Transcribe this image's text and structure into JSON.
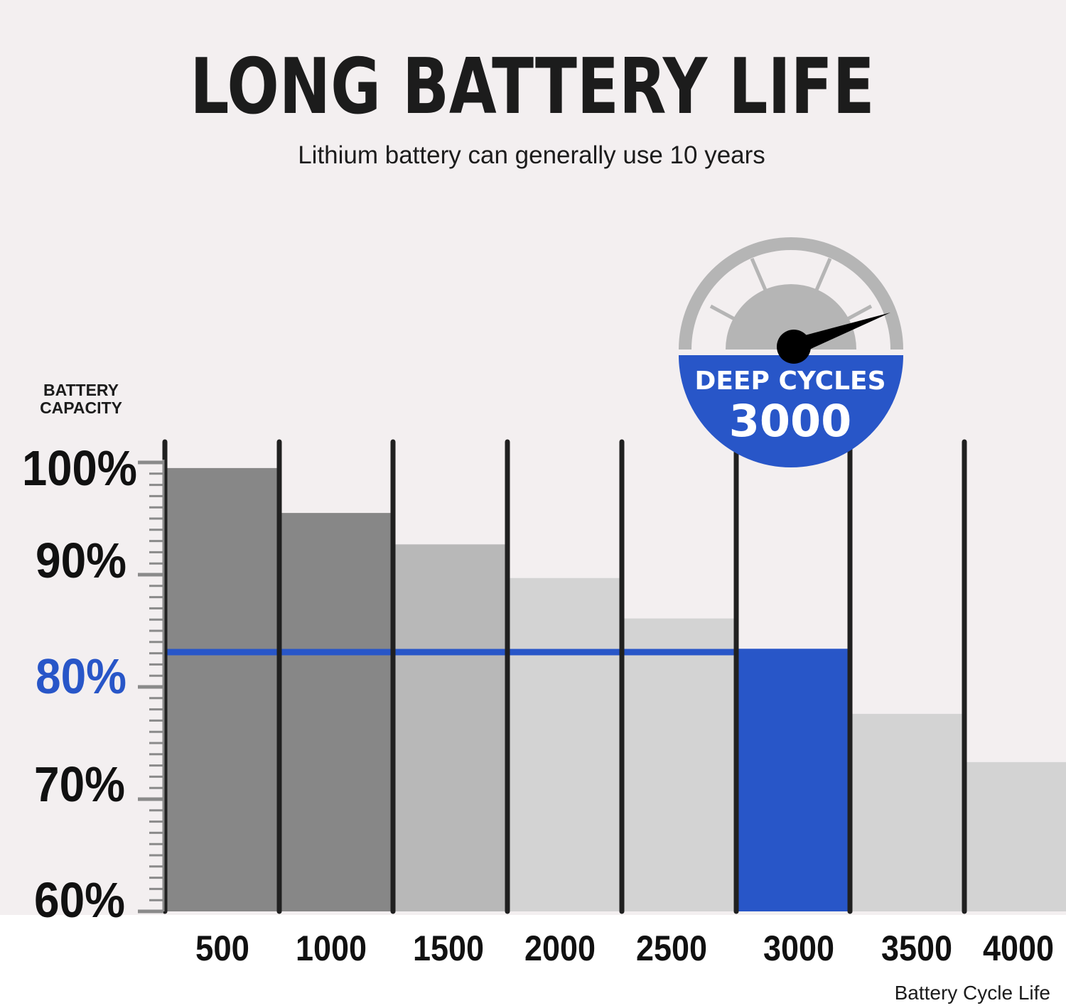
{
  "title": "LONG BATTERY LIFE",
  "subtitle": "Lithium battery can generally use 10 years",
  "badge": {
    "line1": "DEEP CYCLES",
    "line2": "3000"
  },
  "colors": {
    "background": "#f3eff0",
    "dark_bar": "#878787",
    "mid_bar": "#b8b8b8",
    "light_bar": "#d3d3d3",
    "highlight": "#2856c8",
    "divider": "#202020",
    "text": "#1c1c1c"
  },
  "chart_data": {
    "type": "bar",
    "xlabel": "Battery Cycle Life",
    "ylabel_lines": [
      "BATTERY",
      "CAPACITY"
    ],
    "categories": [
      "500",
      "1000",
      "1500",
      "2000",
      "2500",
      "3000",
      "3500",
      "4000"
    ],
    "values": [
      99.5,
      95.5,
      92.7,
      89.7,
      86.1,
      83.4,
      77.6,
      73.3
    ],
    "highlight_category": "3000",
    "reference_line": 83.1,
    "ylim": [
      60,
      100
    ],
    "yticks": [
      {
        "value": 60,
        "label": "60%"
      },
      {
        "value": 70,
        "label": "70%"
      },
      {
        "value": 80,
        "label": "80%"
      },
      {
        "value": 90,
        "label": "90%"
      },
      {
        "value": 100,
        "label": "100%"
      }
    ],
    "highlight_ytick": "80%",
    "grid": false,
    "legend": "none"
  }
}
